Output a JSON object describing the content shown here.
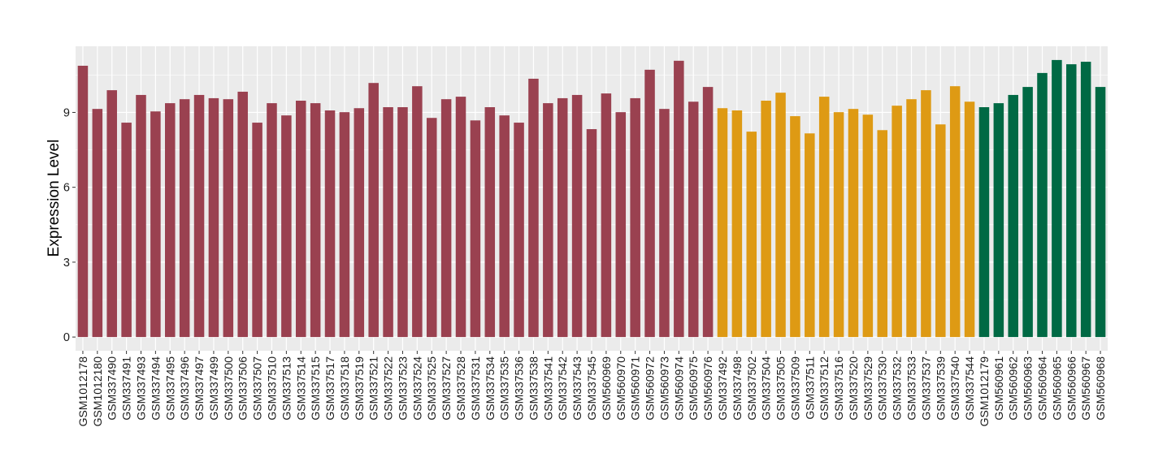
{
  "chart_data": {
    "type": "bar",
    "title": "",
    "xlabel": "",
    "ylabel": "Expression Level",
    "ylim": [
      -0.55,
      11.65
    ],
    "yticks": [
      0,
      3,
      6,
      9
    ],
    "grid": true,
    "legend": "none",
    "categories": [
      "GSM1012178",
      "GSM1012180",
      "GSM337490",
      "GSM337491",
      "GSM337493",
      "GSM337494",
      "GSM337495",
      "GSM337496",
      "GSM337497",
      "GSM337499",
      "GSM337500",
      "GSM337506",
      "GSM337507",
      "GSM337510",
      "GSM337513",
      "GSM337514",
      "GSM337515",
      "GSM337517",
      "GSM337518",
      "GSM337519",
      "GSM337521",
      "GSM337522",
      "GSM337523",
      "GSM337524",
      "GSM337525",
      "GSM337527",
      "GSM337528",
      "GSM337531",
      "GSM337534",
      "GSM337535",
      "GSM337536",
      "GSM337538",
      "GSM337541",
      "GSM337542",
      "GSM337543",
      "GSM337545",
      "GSM560969",
      "GSM560970",
      "GSM560971",
      "GSM560972",
      "GSM560973",
      "GSM560974",
      "GSM560975",
      "GSM560976",
      "GSM337492",
      "GSM337498",
      "GSM337502",
      "GSM337504",
      "GSM337505",
      "GSM337509",
      "GSM337511",
      "GSM337512",
      "GSM337516",
      "GSM337520",
      "GSM337529",
      "GSM337530",
      "GSM337532",
      "GSM337533",
      "GSM337537",
      "GSM337539",
      "GSM337540",
      "GSM337544",
      "GSM1012179",
      "GSM560961",
      "GSM560962",
      "GSM560963",
      "GSM560964",
      "GSM560965",
      "GSM560966",
      "GSM560967",
      "GSM560968"
    ],
    "values": [
      10.87,
      9.14,
      9.89,
      8.59,
      9.7,
      9.04,
      9.37,
      9.53,
      9.7,
      9.57,
      9.53,
      9.83,
      8.59,
      9.37,
      8.88,
      9.47,
      9.37,
      9.08,
      9.01,
      9.17,
      10.18,
      9.21,
      9.21,
      10.05,
      8.78,
      9.53,
      9.63,
      8.68,
      9.21,
      8.88,
      8.59,
      10.35,
      9.37,
      9.57,
      9.7,
      8.33,
      9.76,
      9.01,
      9.57,
      10.71,
      9.14,
      11.07,
      9.43,
      10.02,
      9.17,
      9.08,
      8.23,
      9.47,
      9.79,
      8.85,
      8.16,
      9.63,
      9.01,
      9.14,
      8.91,
      8.29,
      9.27,
      9.53,
      9.89,
      8.52,
      10.05,
      9.43,
      9.21,
      9.37,
      9.7,
      10.02,
      10.58,
      11.1,
      10.93,
      11.03,
      10.02
    ],
    "groups": [
      {
        "count": 44,
        "color": "#9A4150"
      },
      {
        "count": 18,
        "color": "#DE9A14"
      },
      {
        "count": 9,
        "color": "#006944"
      }
    ],
    "panel_color": "#EBEBEB"
  }
}
